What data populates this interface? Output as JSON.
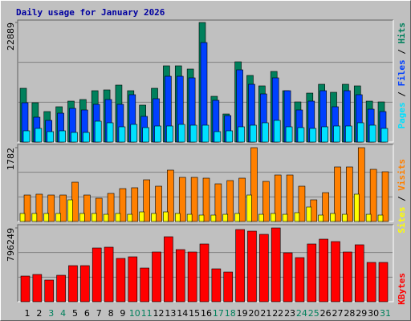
{
  "chart_data": [
    {
      "type": "bar",
      "title": "Daily usage for January 2026",
      "legend_separator": " / ",
      "ylim": [
        0,
        22889
      ],
      "yticks": [
        22889
      ],
      "grid": true,
      "series": [
        {
          "name": "Hits",
          "color": "#00805c",
          "values": [
            10292,
            7527,
            5837,
            6759,
            7834,
            8141,
            9831,
            9985,
            10907,
            9831,
            7066,
            10292,
            14593,
            14593,
            13979,
            22889,
            8756,
            5376,
            15361,
            12750,
            10753,
            13518,
            9831,
            7681,
            9370,
            11060,
            9524,
            11060,
            10753,
            7834,
            7681
          ]
        },
        {
          "name": "Files",
          "color": "#0040ff",
          "values": [
            7527,
            4762,
            4147,
            5530,
            6452,
            6144,
            7220,
            8141,
            7220,
            9063,
            4916,
            8295,
            12596,
            12596,
            12289,
            19048,
            7988,
            5069,
            13825,
            11060,
            9217,
            12289,
            9831,
            6144,
            7834,
            9831,
            6759,
            9831,
            9063,
            6298,
            5837
          ]
        },
        {
          "name": "Pages",
          "color": "#00e0ff",
          "values": [
            2151,
            2611,
            1997,
            2151,
            1843,
            1843,
            3994,
            3687,
            2919,
            3379,
            2765,
            3072,
            3072,
            3379,
            3226,
            3226,
            1997,
            2151,
            2919,
            3226,
            3687,
            4147,
            2919,
            2765,
            2611,
            2919,
            3072,
            3072,
            3687,
            3226,
            2611
          ]
        }
      ]
    },
    {
      "type": "bar",
      "legend_separator": " / ",
      "ylim": [
        0,
        1782
      ],
      "yticks": [
        1782
      ],
      "grid": true,
      "series": [
        {
          "name": "Visits",
          "color": "#ff8000",
          "values": [
            639,
            659,
            639,
            639,
            949,
            639,
            562,
            678,
            794,
            814,
            1007,
            852,
            1240,
            1065,
            1065,
            1046,
            910,
            988,
            1046,
            1782,
            968,
            1123,
            1123,
            852,
            523,
            697,
            1317,
            1317,
            1782,
            1259,
            1201
          ]
        },
        {
          "name": "Sites",
          "color": "#ffff00",
          "values": [
            194,
            194,
            194,
            194,
            523,
            194,
            194,
            174,
            194,
            174,
            232,
            194,
            232,
            194,
            174,
            155,
            155,
            174,
            194,
            639,
            174,
            194,
            174,
            213,
            349,
            155,
            194,
            174,
            659,
            174,
            155
          ]
        }
      ]
    },
    {
      "type": "bar",
      "ylim": [
        0,
        796249
      ],
      "yticks": [
        796249
      ],
      "grid": true,
      "categories": [
        "1",
        "2",
        "3",
        "4",
        "5",
        "6",
        "7",
        "8",
        "9",
        "10",
        "11",
        "12",
        "13",
        "14",
        "15",
        "16",
        "17",
        "18",
        "19",
        "20",
        "21",
        "22",
        "23",
        "24",
        "25",
        "26",
        "27",
        "28",
        "29",
        "30",
        "31"
      ],
      "category_colors": [
        "#000000",
        "#000000",
        "#00805c",
        "#00805c",
        "#000000",
        "#000000",
        "#000000",
        "#000000",
        "#000000",
        "#00805c",
        "#00805c",
        "#000000",
        "#000000",
        "#000000",
        "#000000",
        "#000000",
        "#00805c",
        "#00805c",
        "#000000",
        "#000000",
        "#000000",
        "#000000",
        "#000000",
        "#00805c",
        "#00805c",
        "#000000",
        "#000000",
        "#000000",
        "#000000",
        "#000000",
        "#00805c"
      ],
      "series": [
        {
          "name": "KBytes",
          "color": "#ff0000",
          "values": [
            276960,
            294270,
            233685,
            285615,
            389475,
            389475,
            579885,
            588540,
            467370,
            484680,
            363510,
            536610,
            701055,
            562575,
            536610,
            623160,
            354855,
            320235,
            778950,
            761640,
            727020,
            796249,
            527955,
            476025,
            623160,
            675090,
            649125,
            536610,
            614505,
            424095,
            424095
          ]
        }
      ]
    }
  ]
}
